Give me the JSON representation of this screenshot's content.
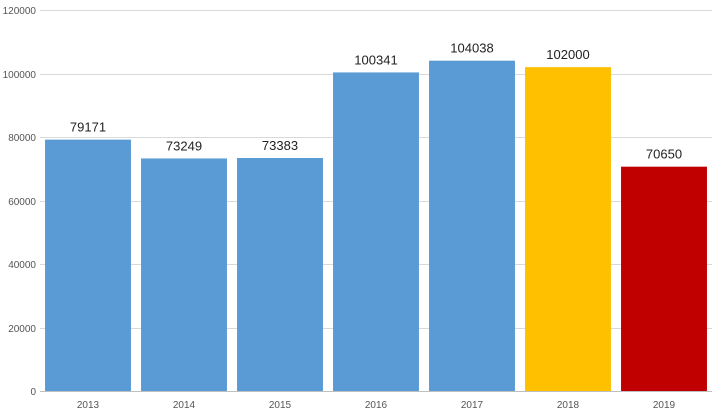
{
  "chart_data": {
    "type": "bar",
    "title": "",
    "xlabel": "",
    "ylabel": "",
    "categories": [
      "2013",
      "2014",
      "2015",
      "2016",
      "2017",
      "2018",
      "2019"
    ],
    "values": [
      79171,
      73249,
      73383,
      100341,
      104038,
      102000,
      70650
    ],
    "data_labels": [
      "79171",
      "73249",
      "73383",
      "100341",
      "104038",
      "102000",
      "70650"
    ],
    "bar_colors": [
      "#5b9bd5",
      "#5b9bd5",
      "#5b9bd5",
      "#5b9bd5",
      "#5b9bd5",
      "#ffc000",
      "#c00000"
    ],
    "ylim": [
      0,
      120000
    ],
    "yticks": [
      0,
      20000,
      40000,
      60000,
      80000,
      100000,
      120000
    ],
    "ytick_labels": [
      "0",
      "20000",
      "40000",
      "60000",
      "80000",
      "100000",
      "120000"
    ],
    "grid": true,
    "legend": "none"
  }
}
